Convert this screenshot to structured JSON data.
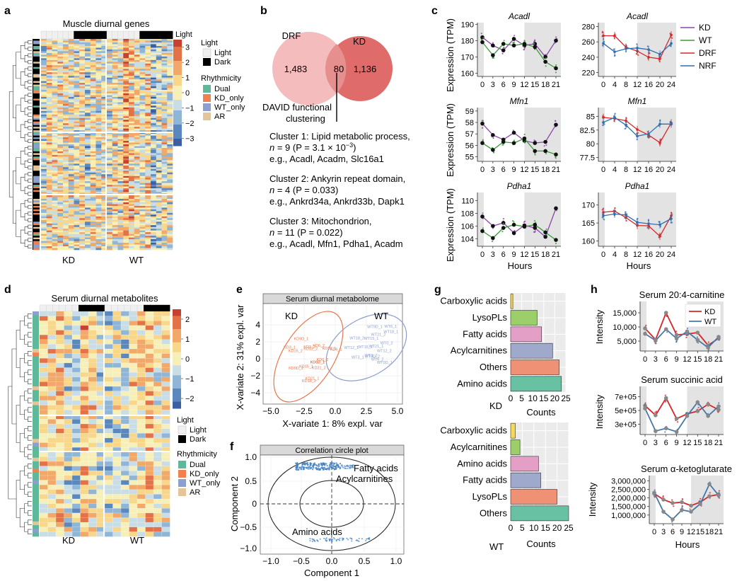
{
  "panel_labels": {
    "a": "a",
    "b": "b",
    "c": "c",
    "d": "d",
    "e": "e",
    "f": "f",
    "g": "g",
    "h": "h"
  },
  "a": {
    "title": "Muscle diurnal genes",
    "legend_light_title": "Light",
    "light_items": [
      "Light",
      "Dark"
    ],
    "legend_rhythm_title": "Rhythmicity",
    "rhythm_items": [
      "Dual",
      "KD_only",
      "WT_only",
      "AR"
    ],
    "rhythm_colors": [
      "#5fb89a",
      "#f08050",
      "#8c9fce",
      "#e5c49a"
    ],
    "scale_ticks": [
      "3",
      "2",
      "1",
      "0",
      "−1",
      "−2",
      "−3"
    ],
    "group_labels": [
      "KD",
      "WT"
    ],
    "legend_scale_title": "Light"
  },
  "b": {
    "set_labels": [
      "DRF",
      "KD"
    ],
    "counts": [
      "1,483",
      "80",
      "1,136"
    ],
    "david_line1": "DAVID functional",
    "david_line2": "clustering",
    "clusters": [
      {
        "l1": "Cluster 1: Lipid metabolic process,",
        "n_prefix": "n",
        "l2": " = 9 (P = 3.1 × 10",
        "exp": "−3",
        "l2end": ")",
        "l3": "e.g., Acadl, Acadm, Slc16a1"
      },
      {
        "l1": "Cluster 2: Ankyrin repeat domain,",
        "n_prefix": "n",
        "l2": " = 4 (P = 0.033)",
        "exp": "",
        "l2end": "",
        "l3": "e.g., Ankrd34a, Ankrd33b, Dapk1"
      },
      {
        "l1": "Cluster 3: Mitochondrion,",
        "n_prefix": "n",
        "l2": " = 11 (P = 0.022)",
        "exp": "",
        "l2end": "",
        "l3": "e.g., Acadl, Mfn1, Pdha1, Acadm"
      }
    ]
  },
  "c": {
    "ylabel": "Expression (TPM)",
    "xlabel": "Hours",
    "legend": [
      "KD",
      "WT",
      "DRF",
      "NRF"
    ],
    "legend_colors": [
      "#8e44ad",
      "#3a9a3a",
      "#d62728",
      "#2f6fb0"
    ]
  },
  "d": {
    "title": "Serum diurnal metabolites",
    "legend_light_title": "Light",
    "light_items": [
      "Light",
      "Dark"
    ],
    "legend_rhythm_title": "Rhythmicity",
    "rhythm_items": [
      "Dual",
      "KD_only",
      "WT_only",
      "AR"
    ],
    "scale_ticks": [
      "2",
      "1",
      "0",
      "−1",
      "−2"
    ],
    "group_labels": [
      "KD",
      "WT"
    ]
  },
  "e": {
    "title": "Serum diurnal metabolome",
    "group_labels": [
      "KD",
      "WT"
    ],
    "kd_points": [
      "KD9D_1",
      "KD15_1",
      "KD21_1",
      "KD3_1",
      "KD0D_1",
      "KD12_1",
      "KD18_1",
      "KD6_1",
      "KD9D_2",
      "KD15_2",
      "KD21_2",
      "KD3_2",
      "KD0_2",
      "KD12_2",
      "KD18_2",
      "KD6_2"
    ],
    "wt_points": [
      "WT9D_1",
      "WT15_1",
      "WT21_1",
      "WT3_1",
      "WT0D_1",
      "WT12_1",
      "WT18_1",
      "WT6_1",
      "WT9D_2",
      "WT15_2",
      "WT21_2",
      "WT3_2",
      "WT0_2",
      "WT12_2",
      "WT18_2",
      "WT6_2"
    ]
  },
  "f": {
    "title": "Correlation circle plot",
    "annotations": [
      "Fatty acids",
      "Acylcarnitines",
      "Amino acids"
    ]
  },
  "g": {
    "xlabel": "Counts",
    "x_ticks": [
      "0",
      "5",
      "10",
      "15",
      "20",
      "25"
    ],
    "kd_label": "KD",
    "wt_label": "WT"
  },
  "h": {
    "xlabel": "Hours",
    "ylabel": "Intensity",
    "legend": [
      "KD",
      "WT"
    ],
    "legend_colors": [
      "#d62728",
      "#4477aa"
    ]
  },
  "chart_data": [
    {
      "id": "c1",
      "type": "line",
      "title": "Acadl",
      "x": [
        0,
        3,
        6,
        9,
        12,
        15,
        18,
        21
      ],
      "ylim": [
        158,
        191
      ],
      "yticks": [
        160,
        170,
        180,
        190
      ],
      "series": [
        {
          "name": "KD",
          "values": [
            182,
            177,
            174,
            181,
            177,
            178,
            170,
            180
          ]
        },
        {
          "name": "WT",
          "values": [
            179,
            171,
            178,
            177,
            178,
            176,
            167,
            163
          ]
        }
      ]
    },
    {
      "id": "c2",
      "type": "line",
      "title": "Acadl",
      "x": [
        0,
        4,
        8,
        12,
        16,
        20,
        24
      ],
      "ylim": [
        215,
        285
      ],
      "yticks": [
        220,
        240,
        260,
        280
      ],
      "series": [
        {
          "name": "DRF",
          "values": [
            268,
            268,
            253,
            248,
            240,
            238,
            269
          ]
        },
        {
          "name": "NRF",
          "values": [
            258,
            247,
            251,
            252,
            250,
            244,
            258
          ]
        }
      ]
    },
    {
      "id": "c3",
      "type": "line",
      "title": "Mfn1",
      "x": [
        0,
        3,
        6,
        9,
        12,
        15,
        18,
        21
      ],
      "ylim": [
        54.6,
        59.3
      ],
      "yticks": [
        55,
        56,
        57,
        58,
        59
      ],
      "series": [
        {
          "name": "KD",
          "values": [
            57.9,
            56.9,
            56.5,
            57.1,
            56.4,
            56.2,
            56.3,
            57.8
          ]
        },
        {
          "name": "WT",
          "values": [
            56.2,
            55.6,
            56.3,
            56.2,
            56.6,
            55.5,
            55.5,
            55.2
          ]
        }
      ]
    },
    {
      "id": "c4",
      "type": "line",
      "title": "Mfn1",
      "x": [
        0,
        4,
        8,
        12,
        16,
        20,
        24
      ],
      "ylim": [
        76.8,
        86.6
      ],
      "yticks": [
        77.5,
        80.0,
        82.5,
        85.0
      ],
      "series": [
        {
          "name": "DRF",
          "values": [
            84.8,
            84.6,
            84.2,
            82.6,
            81.6,
            80.2,
            83.8
          ]
        },
        {
          "name": "NRF",
          "values": [
            83.9,
            84.8,
            83.4,
            81.4,
            81.8,
            83.6,
            83.6
          ]
        }
      ]
    },
    {
      "id": "c5",
      "type": "line",
      "title": "Pdha1",
      "x": [
        0,
        3,
        6,
        9,
        12,
        15,
        18,
        21
      ],
      "ylim": [
        102.8,
        111.3
      ],
      "yticks": [
        104,
        106,
        108,
        110
      ],
      "series": [
        {
          "name": "KD",
          "values": [
            107.5,
            106.0,
            106.5,
            104.9,
            106.1,
            105.7,
            104.3,
            108.8
          ]
        },
        {
          "name": "WT",
          "values": [
            105.2,
            104.1,
            105.7,
            106.2,
            105.9,
            106.2,
            105.0,
            103.8
          ]
        }
      ]
    },
    {
      "id": "c6",
      "type": "line",
      "title": "Pdha1",
      "x": [
        0,
        4,
        8,
        12,
        16,
        20,
        24
      ],
      "ylim": [
        158.5,
        173.5
      ],
      "yticks": [
        160,
        165,
        170
      ],
      "series": [
        {
          "name": "DRF",
          "values": [
            168.0,
            168.3,
            166.5,
            164.3,
            164.2,
            161.3,
            167.0
          ]
        },
        {
          "name": "NRF",
          "values": [
            167.0,
            167.5,
            167.2,
            165.2,
            164.8,
            164.5,
            166.2
          ]
        }
      ]
    },
    {
      "id": "g1",
      "type": "bar",
      "title": "KD",
      "categories": [
        "Carboxylic acids",
        "LysoPLs",
        "Fatty acids",
        "Acylcarnitines",
        "Others",
        "Amino acids"
      ],
      "values": [
        1,
        12,
        14,
        19,
        22,
        23
      ],
      "xlim": [
        0,
        25
      ],
      "xlabel": "Counts"
    },
    {
      "id": "g2",
      "type": "bar",
      "title": "WT",
      "categories": [
        "Carboxylic acids",
        "Acylcarnitines",
        "Amino acids",
        "Fatty acids",
        "LysoPLs",
        "Others"
      ],
      "values": [
        2,
        4,
        12,
        13,
        20,
        25
      ],
      "xlim": [
        0,
        25
      ],
      "xlabel": "Counts"
    },
    {
      "id": "h1",
      "type": "line",
      "title": "Serum 20:4-carnitine",
      "x": [
        0,
        3,
        6,
        9,
        12,
        15,
        18,
        21
      ],
      "ylim": [
        1500,
        19000
      ],
      "yticks": [
        5000,
        10000,
        15000
      ],
      "yticklabels": [
        "5,000",
        "10,000",
        "15,000"
      ],
      "series": [
        {
          "name": "KD",
          "values": [
            9500,
            5500,
            15000,
            7200,
            7500,
            8000,
            3500,
            6000
          ]
        },
        {
          "name": "WT",
          "values": [
            7600,
            5200,
            9200,
            5900,
            8400,
            5400,
            2700,
            6500
          ]
        }
      ]
    },
    {
      "id": "h2",
      "type": "line",
      "title": "Serum succinic acid",
      "x": [
        0,
        3,
        6,
        9,
        12,
        15,
        18,
        21
      ],
      "ylim": [
        150000,
        850000
      ],
      "yticks": [
        300000,
        500000,
        700000
      ],
      "yticklabels": [
        "3e+05",
        "5e+05",
        "7e+05"
      ],
      "series": [
        {
          "name": "KD",
          "values": [
            570000,
            430000,
            680000,
            380000,
            450000,
            490000,
            590000,
            510000
          ]
        },
        {
          "name": "WT",
          "values": [
            530000,
            200000,
            240000,
            190000,
            420000,
            620000,
            420000,
            560000
          ]
        }
      ]
    },
    {
      "id": "h3",
      "type": "line",
      "title": "Serum α-ketoglutarate",
      "x": [
        0,
        3,
        6,
        9,
        12,
        15,
        18,
        21
      ],
      "ylim": [
        500000,
        3300000
      ],
      "yticks": [
        1000000,
        1500000,
        2000000,
        2500000,
        3000000
      ],
      "yticklabels": [
        "1,000,000",
        "1,500,000",
        "2,000,000",
        "2,500,000",
        "3,000,000"
      ],
      "series": [
        {
          "name": "KD",
          "values": [
            2250000,
            1900000,
            1700000,
            1750000,
            1550000,
            1750000,
            2100000,
            2200000
          ]
        },
        {
          "name": "WT",
          "values": [
            2300000,
            1200000,
            750000,
            1300000,
            1200000,
            1650000,
            2800000,
            2150000
          ]
        }
      ]
    }
  ]
}
